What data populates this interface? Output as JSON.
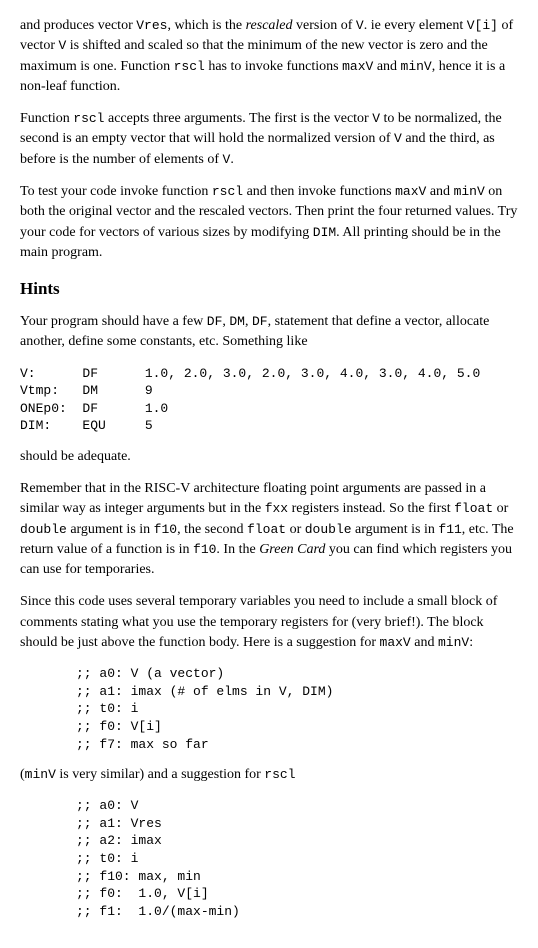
{
  "para1_a": "and produces vector ",
  "para1_b": ", which is the ",
  "para1_c": " version of ",
  "para1_d": ". ie every element ",
  "para1_e": " of vector ",
  "para1_f": " is shifted and scaled so that the minimum of the new vector is zero and the maximum is one. Function ",
  "para1_g": " has to invoke functions ",
  "para1_h": " and ",
  "para1_i": ", hence it is a non-leaf function.",
  "rescaled": "rescaled",
  "Vres": "Vres",
  "V": "V",
  "Vi": "V[i]",
  "rscl": "rscl",
  "maxV": "maxV",
  "minV": "minV",
  "para2_a": "Function ",
  "para2_b": " accepts three arguments. The first is the vector ",
  "para2_c": " to be normalized, the second is an empty vector that will hold the normalized version of ",
  "para2_d": " and the third, as before is the number of elements of ",
  "para2_e": ".",
  "para3_a": "To test your code invoke function ",
  "para3_b": " and then invoke functions ",
  "para3_c": " and ",
  "para3_d": " on both the original vector and the rescaled vectors. Then print the four returned values. Try your code for vectors of various sizes by modifying ",
  "para3_e": ". All printing should be in the main program.",
  "DIM": "DIM",
  "hints": "Hints",
  "para4_a": "Your program should have a few ",
  "para4_b": ", ",
  "para4_c": ", ",
  "para4_d": ", statement that define a vector, allocate another, define some constants, etc. Something like",
  "DF": "DF",
  "DM": "DM",
  "code1": "V:      DF      1.0, 2.0, 3.0, 2.0, 3.0, 4.0, 3.0, 4.0, 5.0\nVtmp:   DM      9\nONEp0:  DF      1.0\nDIM:    EQU     5",
  "para5": "should be adequate.",
  "para6_a": "Remember that in the RISC-V architecture floating point arguments are passed in a similar way as integer arguments but in the ",
  "para6_b": " registers instead. So the first ",
  "para6_c": " or ",
  "para6_d": " argument is in ",
  "para6_e": ", the second ",
  "para6_f": " or ",
  "para6_g": " argument is in ",
  "para6_h": ", etc. The return value of a function is in ",
  "para6_i": ". In the ",
  "para6_j": " you can find which registers you can use for temporaries.",
  "fxx": "fxx",
  "float": "float",
  "double": "double",
  "f10": "f10",
  "f11": "f11",
  "greencard": "Green Card",
  "para7_a": "Since this code uses several temporary variables you need to include a small block of comments stating what you use the temporary registers for (very brief!). The block should be just above the function body. Here is a suggestion for ",
  "para7_b": " and ",
  "para7_c": ":",
  "code2": ";; a0: V (a vector)\n;; a1: imax (# of elms in V, DIM)\n;; t0: i\n;; f0: V[i]\n;; f7: max so far",
  "para8_a": "(",
  "para8_b": " is very similar) and a suggestion for ",
  "code3": ";; a0: V\n;; a1: Vres\n;; a2: imax\n;; t0: i\n;; f10: max, min\n;; f0:  1.0, V[i]\n;; f1:  1.0/(max-min)"
}
